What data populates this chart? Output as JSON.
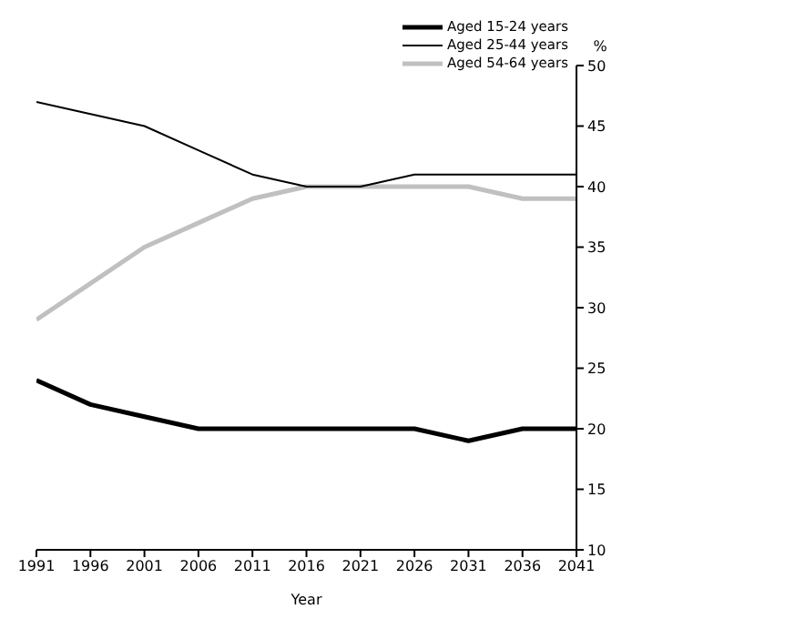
{
  "chart_data": {
    "type": "line",
    "xlabel": "Year",
    "ylabel": "%",
    "x": [
      1991,
      1996,
      2001,
      2006,
      2011,
      2016,
      2021,
      2026,
      2031,
      2036,
      2041
    ],
    "series": [
      {
        "name": "Aged 15-24 years",
        "color": "#000000",
        "values": [
          24,
          22,
          21,
          20,
          20,
          20,
          20,
          20,
          19,
          20,
          20
        ]
      },
      {
        "name": "Aged 25-44 years",
        "color": "#000000",
        "values": [
          47,
          46,
          45,
          43,
          41,
          40,
          40,
          41,
          41,
          41,
          41
        ]
      },
      {
        "name": "Aged 54-64 years",
        "color": "#c0c0c0",
        "values": [
          29,
          32,
          35,
          37,
          39,
          40,
          40,
          40,
          40,
          39,
          39
        ]
      }
    ],
    "xlim": [
      1991,
      2041
    ],
    "xticks": [
      1991,
      1996,
      2001,
      2006,
      2011,
      2016,
      2021,
      2026,
      2031,
      2036,
      2041
    ],
    "ylim": [
      10,
      50
    ],
    "yticks": [
      10,
      15,
      20,
      25,
      30,
      35,
      40,
      45,
      50
    ],
    "grid": false,
    "legend": "top right",
    "marker": "none",
    "line_style": "solid"
  }
}
